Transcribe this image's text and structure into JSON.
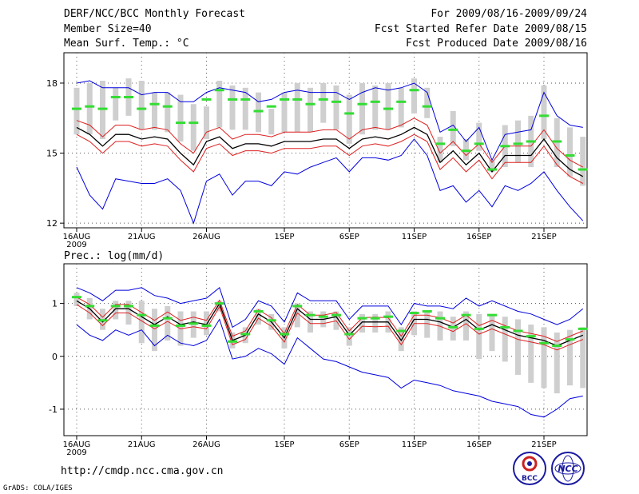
{
  "header": {
    "title": "DERF/NCC/BCC Monthly Forecast",
    "member_size": "Member Size=40",
    "variable": "Mean Surf. Temp.: °C",
    "period": "For 2009/08/16-2009/09/24",
    "fcst_start": "Fcst Started Refer Date 2009/08/15",
    "fcst_produced": "Fcst Produced Date 2009/08/16"
  },
  "footer": {
    "url": "http://cmdp.ncc.cma.gov.cn",
    "grads": "GrADS: COLA/IGES",
    "logo_bcc": "BCC",
    "logo_ncc": "NCC"
  },
  "colors": {
    "ensemble_mean": "#000000",
    "spread_band": "#dd2020",
    "extreme_range": "#0000dd",
    "member_box": "#cfcfcf",
    "median_marker": "#33dd33"
  },
  "chart_data": [
    {
      "type": "line",
      "title": "Mean Surf. Temp.: °C",
      "x": [
        "Aug 16",
        "Aug 17",
        "Aug 18",
        "Aug 19",
        "Aug 20",
        "Aug 21",
        "Aug 22",
        "Aug 23",
        "Aug 24",
        "Aug 25",
        "Aug 26",
        "Aug 27",
        "Aug 28",
        "Aug 29",
        "Aug 30",
        "Aug 31",
        "Sep 1",
        "Sep 2",
        "Sep 3",
        "Sep 4",
        "Sep 5",
        "Sep 6",
        "Sep 7",
        "Sep 8",
        "Sep 9",
        "Sep 10",
        "Sep 11",
        "Sep 12",
        "Sep 13",
        "Sep 14",
        "Sep 15",
        "Sep 16",
        "Sep 17",
        "Sep 18",
        "Sep 19",
        "Sep 20",
        "Sep 21",
        "Sep 22",
        "Sep 23",
        "Sep 24"
      ],
      "xticks": [
        "16AUG",
        "21AUG",
        "26AUG",
        "1SEP",
        "6SEP",
        "11SEP",
        "16SEP",
        "21SEP"
      ],
      "xtick_index": [
        0,
        5,
        10,
        16,
        21,
        26,
        31,
        36
      ],
      "xyear": "2009",
      "yticks": [
        12,
        15,
        18
      ],
      "ylim": [
        11.8,
        19.3
      ],
      "series": [
        {
          "name": "ensemble mean",
          "values": [
            16.1,
            15.8,
            15.3,
            15.8,
            15.8,
            15.6,
            15.7,
            15.6,
            15.0,
            14.5,
            15.5,
            15.7,
            15.2,
            15.4,
            15.4,
            15.3,
            15.5,
            15.5,
            15.5,
            15.6,
            15.6,
            15.2,
            15.6,
            15.7,
            15.6,
            15.8,
            16.1,
            15.8,
            14.6,
            15.1,
            14.5,
            15.0,
            14.2,
            14.9,
            14.9,
            14.9,
            15.6,
            14.8,
            14.3,
            14.0
          ]
        },
        {
          "name": "spread upper",
          "values": [
            16.4,
            16.2,
            15.7,
            16.2,
            16.2,
            16.0,
            16.1,
            16.0,
            15.4,
            15.0,
            15.9,
            16.1,
            15.6,
            15.8,
            15.8,
            15.7,
            15.9,
            15.9,
            15.9,
            16.0,
            16.0,
            15.6,
            16.0,
            16.1,
            16.0,
            16.2,
            16.5,
            16.2,
            15.0,
            15.5,
            14.9,
            15.4,
            14.6,
            15.3,
            15.3,
            15.3,
            16.0,
            15.2,
            14.7,
            14.4
          ]
        },
        {
          "name": "spread lower",
          "values": [
            15.8,
            15.5,
            15.0,
            15.5,
            15.5,
            15.3,
            15.4,
            15.3,
            14.7,
            14.2,
            15.2,
            15.4,
            14.9,
            15.1,
            15.1,
            15.0,
            15.2,
            15.2,
            15.2,
            15.3,
            15.3,
            14.9,
            15.3,
            15.4,
            15.3,
            15.5,
            15.8,
            15.5,
            14.3,
            14.8,
            14.2,
            14.7,
            13.9,
            14.6,
            14.6,
            14.6,
            15.3,
            14.5,
            14.0,
            13.7
          ]
        },
        {
          "name": "max",
          "values": [
            18.0,
            18.1,
            17.8,
            17.8,
            17.8,
            17.5,
            17.6,
            17.6,
            17.2,
            17.2,
            17.6,
            17.8,
            17.7,
            17.6,
            17.2,
            17.3,
            17.6,
            17.7,
            17.6,
            17.6,
            17.6,
            17.3,
            17.6,
            17.8,
            17.7,
            17.8,
            18.0,
            17.6,
            15.9,
            16.2,
            15.5,
            16.1,
            14.7,
            15.8,
            15.9,
            16.0,
            17.6,
            16.6,
            16.2,
            16.1
          ]
        },
        {
          "name": "min",
          "values": [
            14.4,
            13.2,
            12.6,
            13.9,
            13.8,
            13.7,
            13.7,
            13.9,
            13.4,
            12.0,
            13.8,
            14.1,
            13.2,
            13.8,
            13.8,
            13.6,
            14.2,
            14.1,
            14.4,
            14.6,
            14.8,
            14.2,
            14.8,
            14.8,
            14.7,
            14.9,
            15.6,
            14.9,
            13.4,
            13.6,
            12.9,
            13.4,
            12.7,
            13.6,
            13.4,
            13.7,
            14.2,
            13.4,
            12.7,
            12.1
          ]
        }
      ],
      "members_range": {
        "upper": [
          17.8,
          18.0,
          18.1,
          17.8,
          18.2,
          18.1,
          17.6,
          17.6,
          17.5,
          17.1,
          17.0,
          18.1,
          17.9,
          17.8,
          17.6,
          16.9,
          17.6,
          18.0,
          17.8,
          18.0,
          17.9,
          17.5,
          18.0,
          17.9,
          18.0,
          17.8,
          18.2,
          17.8,
          15.7,
          16.8,
          15.6,
          16.3,
          14.7,
          16.2,
          16.4,
          16.6,
          17.9,
          16.5,
          16.1,
          15.7
        ],
        "lower": [
          15.8,
          15.8,
          15.6,
          16.4,
          16.6,
          16.0,
          16.0,
          15.9,
          15.5,
          15.1,
          15.6,
          16.1,
          16.0,
          16.0,
          15.9,
          15.8,
          15.9,
          15.9,
          15.9,
          16.3,
          16.0,
          15.4,
          15.8,
          16.0,
          16.0,
          16.1,
          16.7,
          16.5,
          14.6,
          15.3,
          14.7,
          15.1,
          14.2,
          14.4,
          14.6,
          14.4,
          15.6,
          14.4,
          14.0,
          13.6
        ]
      },
      "median": [
        16.9,
        17.0,
        16.9,
        17.4,
        17.4,
        16.9,
        17.1,
        17.0,
        16.3,
        16.3,
        17.3,
        17.7,
        17.3,
        17.3,
        16.8,
        17.0,
        17.3,
        17.3,
        17.1,
        17.3,
        17.2,
        16.7,
        17.1,
        17.2,
        16.9,
        17.2,
        17.7,
        17.0,
        15.4,
        16.0,
        15.1,
        15.4,
        14.3,
        15.3,
        15.4,
        15.5,
        16.6,
        15.5,
        14.9,
        14.3
      ]
    },
    {
      "type": "line",
      "title": "Prec.: log(mm/d)",
      "x": [
        "Aug 16",
        "Aug 17",
        "Aug 18",
        "Aug 19",
        "Aug 20",
        "Aug 21",
        "Aug 22",
        "Aug 23",
        "Aug 24",
        "Aug 25",
        "Aug 26",
        "Aug 27",
        "Aug 28",
        "Aug 29",
        "Aug 30",
        "Aug 31",
        "Sep 1",
        "Sep 2",
        "Sep 3",
        "Sep 4",
        "Sep 5",
        "Sep 6",
        "Sep 7",
        "Sep 8",
        "Sep 9",
        "Sep 10",
        "Sep 11",
        "Sep 12",
        "Sep 13",
        "Sep 14",
        "Sep 15",
        "Sep 16",
        "Sep 17",
        "Sep 18",
        "Sep 19",
        "Sep 20",
        "Sep 21",
        "Sep 22",
        "Sep 23",
        "Sep 24"
      ],
      "xticks": [
        "16AUG",
        "21AUG",
        "26AUG",
        "1SEP",
        "6SEP",
        "11SEP",
        "16SEP",
        "21SEP"
      ],
      "xtick_index": [
        0,
        5,
        10,
        16,
        21,
        26,
        31,
        36
      ],
      "xyear": "2009",
      "yticks": [
        -1,
        0,
        1
      ],
      "ylim": [
        -1.5,
        1.75
      ],
      "series": [
        {
          "name": "ensemble mean",
          "values": [
            1.05,
            0.9,
            0.65,
            0.9,
            0.9,
            0.75,
            0.6,
            0.75,
            0.6,
            0.65,
            0.6,
            1.0,
            0.3,
            0.4,
            0.8,
            0.65,
            0.35,
            0.9,
            0.7,
            0.7,
            0.75,
            0.4,
            0.65,
            0.65,
            0.65,
            0.3,
            0.7,
            0.7,
            0.65,
            0.55,
            0.7,
            0.5,
            0.6,
            0.5,
            0.4,
            0.35,
            0.3,
            0.2,
            0.3,
            0.4
          ]
        },
        {
          "name": "spread upper",
          "values": [
            1.12,
            0.98,
            0.74,
            0.98,
            0.98,
            0.83,
            0.68,
            0.84,
            0.68,
            0.74,
            0.68,
            1.06,
            0.38,
            0.48,
            0.88,
            0.73,
            0.43,
            0.98,
            0.78,
            0.78,
            0.83,
            0.48,
            0.73,
            0.74,
            0.73,
            0.38,
            0.78,
            0.78,
            0.73,
            0.63,
            0.78,
            0.58,
            0.68,
            0.58,
            0.48,
            0.43,
            0.38,
            0.28,
            0.38,
            0.48
          ]
        },
        {
          "name": "spread lower",
          "values": [
            0.98,
            0.82,
            0.58,
            0.82,
            0.82,
            0.67,
            0.52,
            0.66,
            0.52,
            0.56,
            0.52,
            0.94,
            0.22,
            0.32,
            0.72,
            0.57,
            0.27,
            0.82,
            0.62,
            0.62,
            0.67,
            0.32,
            0.57,
            0.56,
            0.57,
            0.22,
            0.62,
            0.62,
            0.57,
            0.47,
            0.62,
            0.42,
            0.52,
            0.42,
            0.32,
            0.27,
            0.22,
            0.12,
            0.22,
            0.32
          ]
        },
        {
          "name": "max",
          "values": [
            1.3,
            1.2,
            1.05,
            1.25,
            1.25,
            1.3,
            1.15,
            1.1,
            1.0,
            1.05,
            1.1,
            1.3,
            0.55,
            0.7,
            1.05,
            0.95,
            0.65,
            1.2,
            1.05,
            1.05,
            1.05,
            0.7,
            0.95,
            0.95,
            0.95,
            0.6,
            1.0,
            0.95,
            0.95,
            0.9,
            1.1,
            0.95,
            1.05,
            0.95,
            0.85,
            0.8,
            0.7,
            0.6,
            0.7,
            0.9
          ]
        },
        {
          "name": "min",
          "values": [
            0.6,
            0.4,
            0.3,
            0.5,
            0.4,
            0.5,
            0.2,
            0.4,
            0.25,
            0.2,
            0.3,
            0.7,
            -0.05,
            0.0,
            0.15,
            0.05,
            -0.15,
            0.35,
            0.15,
            -0.05,
            -0.1,
            -0.2,
            -0.3,
            -0.35,
            -0.4,
            -0.6,
            -0.45,
            -0.5,
            -0.55,
            -0.65,
            -0.7,
            -0.75,
            -0.85,
            -0.9,
            -0.95,
            -1.1,
            -1.15,
            -1.0,
            -0.8,
            -0.75
          ]
        }
      ],
      "members_range": {
        "upper": [
          1.2,
          1.1,
          0.9,
          1.05,
          1.05,
          1.05,
          0.9,
          0.95,
          0.85,
          0.85,
          0.85,
          1.05,
          0.45,
          0.55,
          0.9,
          0.8,
          0.55,
          1.0,
          0.85,
          0.85,
          0.85,
          0.55,
          0.8,
          0.8,
          0.85,
          0.55,
          0.85,
          0.85,
          0.85,
          0.75,
          0.85,
          0.8,
          0.8,
          0.75,
          0.7,
          0.6,
          0.55,
          0.45,
          0.5,
          0.55
        ],
        "lower": [
          0.95,
          0.7,
          0.5,
          0.7,
          0.6,
          0.25,
          0.1,
          0.3,
          0.2,
          0.35,
          0.4,
          0.85,
          0.15,
          0.25,
          0.6,
          0.5,
          0.15,
          0.55,
          0.45,
          0.55,
          0.5,
          0.2,
          0.45,
          0.45,
          0.45,
          0.1,
          0.4,
          0.35,
          0.3,
          0.3,
          0.3,
          -0.05,
          0.1,
          -0.1,
          -0.35,
          -0.5,
          -0.6,
          -0.7,
          -0.55,
          -0.6
        ]
      },
      "median": [
        1.12,
        0.95,
        0.68,
        0.95,
        0.95,
        0.78,
        0.58,
        0.72,
        0.58,
        0.62,
        0.58,
        1.0,
        0.28,
        0.42,
        0.85,
        0.68,
        0.42,
        0.95,
        0.78,
        0.75,
        0.78,
        0.42,
        0.72,
        0.72,
        0.75,
        0.48,
        0.82,
        0.85,
        0.72,
        0.55,
        0.78,
        0.52,
        0.78,
        0.55,
        0.48,
        0.38,
        0.25,
        0.2,
        0.32,
        0.52
      ]
    }
  ]
}
